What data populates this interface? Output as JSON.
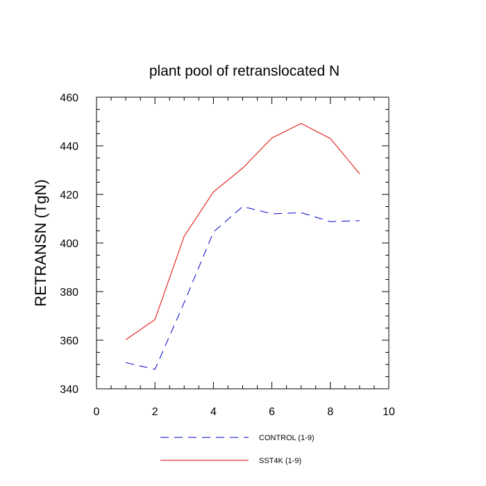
{
  "chart_data": {
    "type": "line",
    "title": "plant pool of retranslocated N",
    "xlabel": "",
    "ylabel": "RETRANSN  (TgN)",
    "xlim": [
      0,
      10
    ],
    "ylim": [
      340,
      460
    ],
    "xticks": [
      0,
      2,
      4,
      6,
      8,
      10
    ],
    "yticks": [
      340,
      360,
      380,
      400,
      420,
      440,
      460
    ],
    "xtick_labels": [
      "0",
      "2",
      "4",
      "6",
      "8",
      "10"
    ],
    "ytick_labels": [
      "340",
      "360",
      "380",
      "400",
      "420",
      "440",
      "460"
    ],
    "x_minor_step": 0.5,
    "y_minor_step": 5,
    "grid": false,
    "legend_position": "bottom-center",
    "series": [
      {
        "name": "CONTROL (1-9)",
        "color": "#0000cc",
        "dash": "dashed",
        "x": [
          1,
          2,
          3,
          4,
          5,
          6,
          7,
          8,
          9
        ],
        "y": [
          350.8,
          348.0,
          375.5,
          404.5,
          415.0,
          412.0,
          412.5,
          408.8,
          409.2
        ]
      },
      {
        "name": "SST4K (1-9)",
        "color": "#e00000",
        "dash": "solid",
        "x": [
          1,
          2,
          3,
          4,
          5,
          6,
          7,
          8,
          9
        ],
        "y": [
          360.2,
          368.5,
          402.8,
          421.0,
          430.8,
          443.2,
          449.2,
          443.0,
          428.5
        ]
      }
    ]
  }
}
